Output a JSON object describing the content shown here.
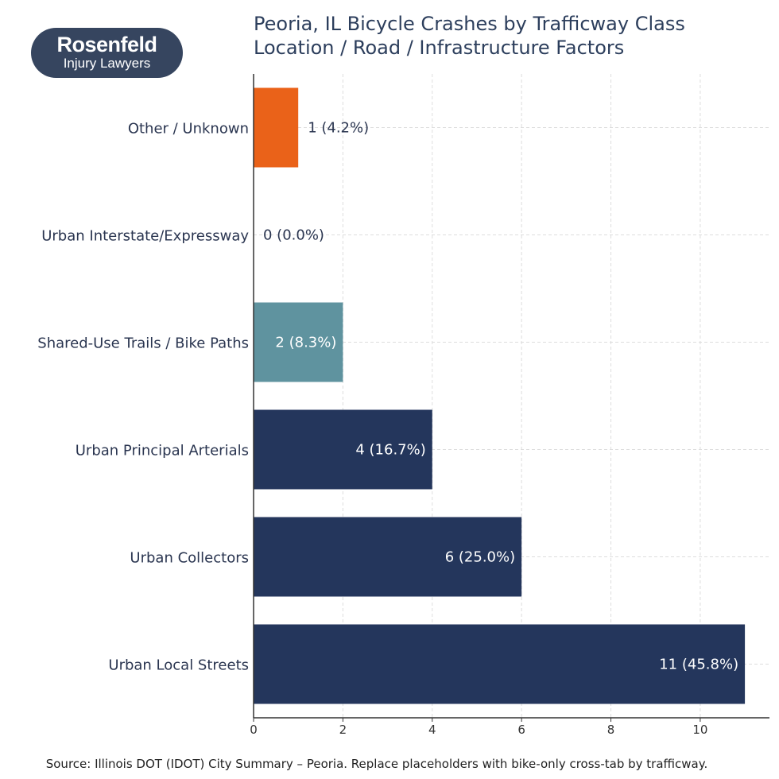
{
  "logo": {
    "name": "Rosenfeld",
    "tagline": "Injury Lawyers"
  },
  "chart_data": {
    "type": "bar",
    "orientation": "horizontal",
    "title": "Peoria, IL Bicycle Crashes by Trafficway Class",
    "subtitle": "Location / Road / Infrastructure Factors",
    "categories": [
      "Urban Local Streets",
      "Urban Collectors",
      "Urban Principal Arterials",
      "Shared-Use Trails / Bike Paths",
      "Urban Interstate/Expressway",
      "Other / Unknown"
    ],
    "values": [
      11,
      6,
      4,
      2,
      0,
      1
    ],
    "data_labels": [
      "11  (45.8%)",
      "6  (25.0%)",
      "4  (16.7%)",
      "2  (8.3%)",
      "0  (0.0%)",
      "1  (4.2%)"
    ],
    "colors": [
      "#24365c",
      "#24365c",
      "#24365c",
      "#5f939f",
      "#24365c",
      "#ea6219"
    ],
    "xlim": [
      0,
      11.55
    ],
    "xticks": [
      "0",
      "2",
      "4",
      "6",
      "8",
      "10"
    ],
    "grid": true,
    "xlabel": "",
    "ylabel": "",
    "source": "Source: Illinois DOT (IDOT) City Summary – Peoria. Replace placeholders with bike-only cross-tab by trafficway."
  }
}
